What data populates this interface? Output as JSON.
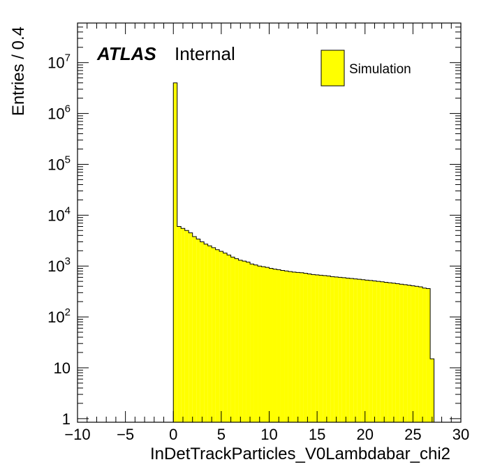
{
  "chart_data": {
    "type": "bar",
    "xlabel": "InDetTrackParticles_V0Lambdabar_chi2",
    "ylabel": "Entries / 0.4",
    "xlim": [
      -10,
      30
    ],
    "ylim": [
      0.85,
      60000000
    ],
    "log_y": true,
    "bin_width": 0.4,
    "x_ticks": [
      -10,
      -5,
      0,
      5,
      10,
      15,
      20,
      25,
      30
    ],
    "x_tick_labels": [
      "−10",
      "−5",
      "0",
      "5",
      "10",
      "15",
      "20",
      "25",
      "30"
    ],
    "y_ticks": [
      {
        "value": 1,
        "base": "1",
        "exp": ""
      },
      {
        "value": 10,
        "base": "10",
        "exp": ""
      },
      {
        "value": 100,
        "base": "10",
        "exp": "2"
      },
      {
        "value": 1000,
        "base": "10",
        "exp": "3"
      },
      {
        "value": 10000,
        "base": "10",
        "exp": "4"
      },
      {
        "value": 100000,
        "base": "10",
        "exp": "5"
      },
      {
        "value": 1000000,
        "base": "10",
        "exp": "6"
      },
      {
        "value": 10000000,
        "base": "10",
        "exp": "7"
      }
    ],
    "x_start": 0.0,
    "values": [
      4000000,
      6000,
      5500,
      5000,
      4500,
      3800,
      3400,
      3000,
      2700,
      2500,
      2300,
      2100,
      1950,
      1800,
      1650,
      1500,
      1400,
      1300,
      1250,
      1200,
      1100,
      1050,
      1000,
      970,
      940,
      900,
      870,
      850,
      820,
      800,
      780,
      760,
      750,
      740,
      720,
      700,
      680,
      670,
      660,
      650,
      640,
      620,
      610,
      600,
      590,
      580,
      570,
      560,
      550,
      540,
      530,
      520,
      510,
      500,
      490,
      480,
      470,
      460,
      450,
      440,
      430,
      420,
      410,
      400,
      390,
      370,
      360,
      15,
      0,
      0
    ],
    "series_color": "#ffff00",
    "legend": {
      "label": "Simulation",
      "position": "top-right"
    },
    "annotations": {
      "atlas": "ATLAS",
      "status": "Internal"
    }
  }
}
